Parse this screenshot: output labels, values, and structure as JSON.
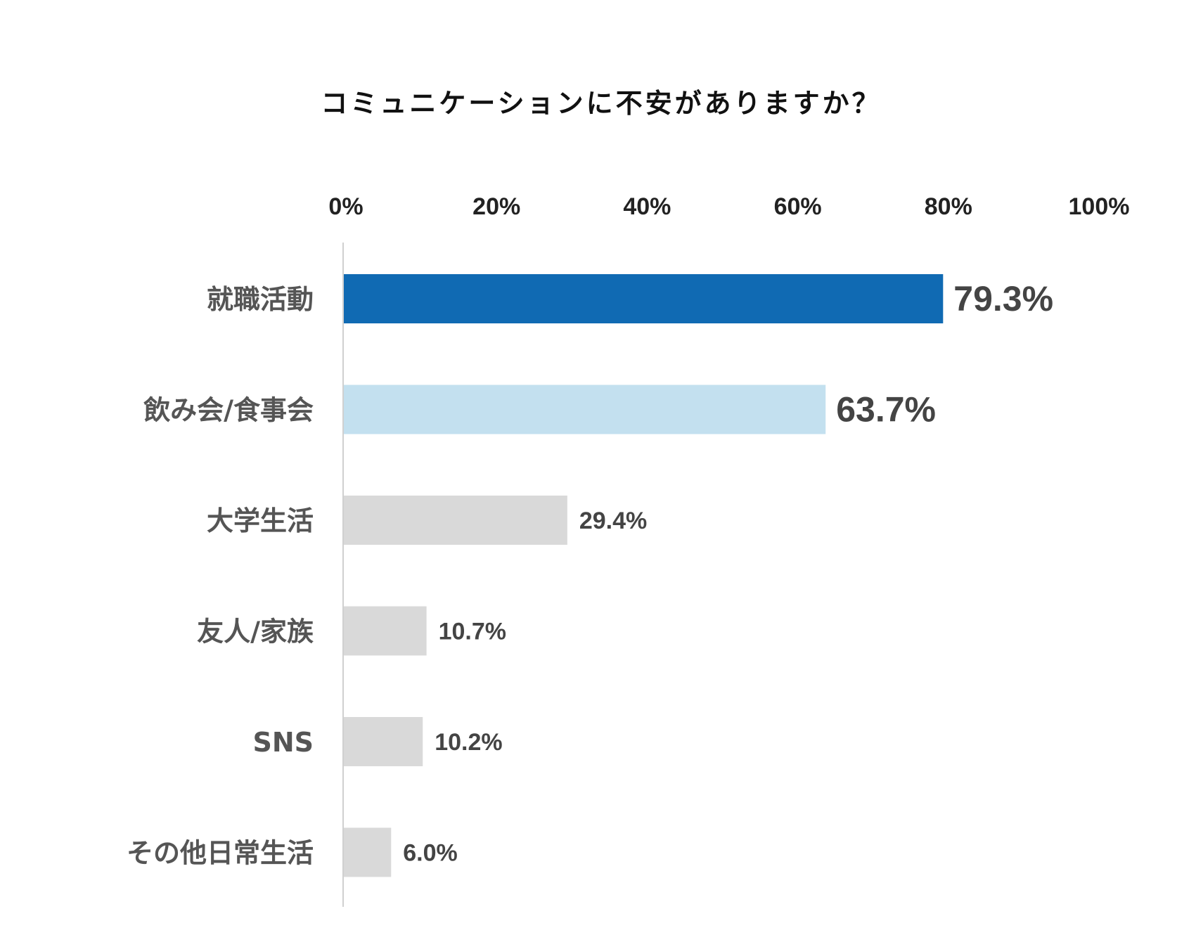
{
  "chart_data": {
    "type": "bar",
    "orientation": "horizontal",
    "title": "コミュニケーションに不安がありますか？",
    "xlabel": "",
    "ylabel": "",
    "xlim": [
      0,
      100
    ],
    "ticks": [
      "0%",
      "20%",
      "40%",
      "60%",
      "80%",
      "100%"
    ],
    "tick_values": [
      0,
      20,
      40,
      60,
      80,
      100
    ],
    "categories": [
      "就職活動",
      "飲み会/食事会",
      "大学生活",
      "友人/家族",
      "SNS",
      "その他日常生活"
    ],
    "values": [
      79.3,
      63.7,
      29.4,
      10.7,
      10.2,
      6.0
    ],
    "value_labels": [
      "79.3%",
      "63.7%",
      "29.4%",
      "10.7%",
      "10.2%",
      "6.0%"
    ],
    "colors": [
      "#106ab3",
      "#c3e0ef",
      "#d9d9d9",
      "#d9d9d9",
      "#d9d9d9",
      "#d9d9d9"
    ],
    "emphasized": [
      true,
      true,
      false,
      false,
      false,
      false
    ],
    "grid": false,
    "legend": "none"
  }
}
